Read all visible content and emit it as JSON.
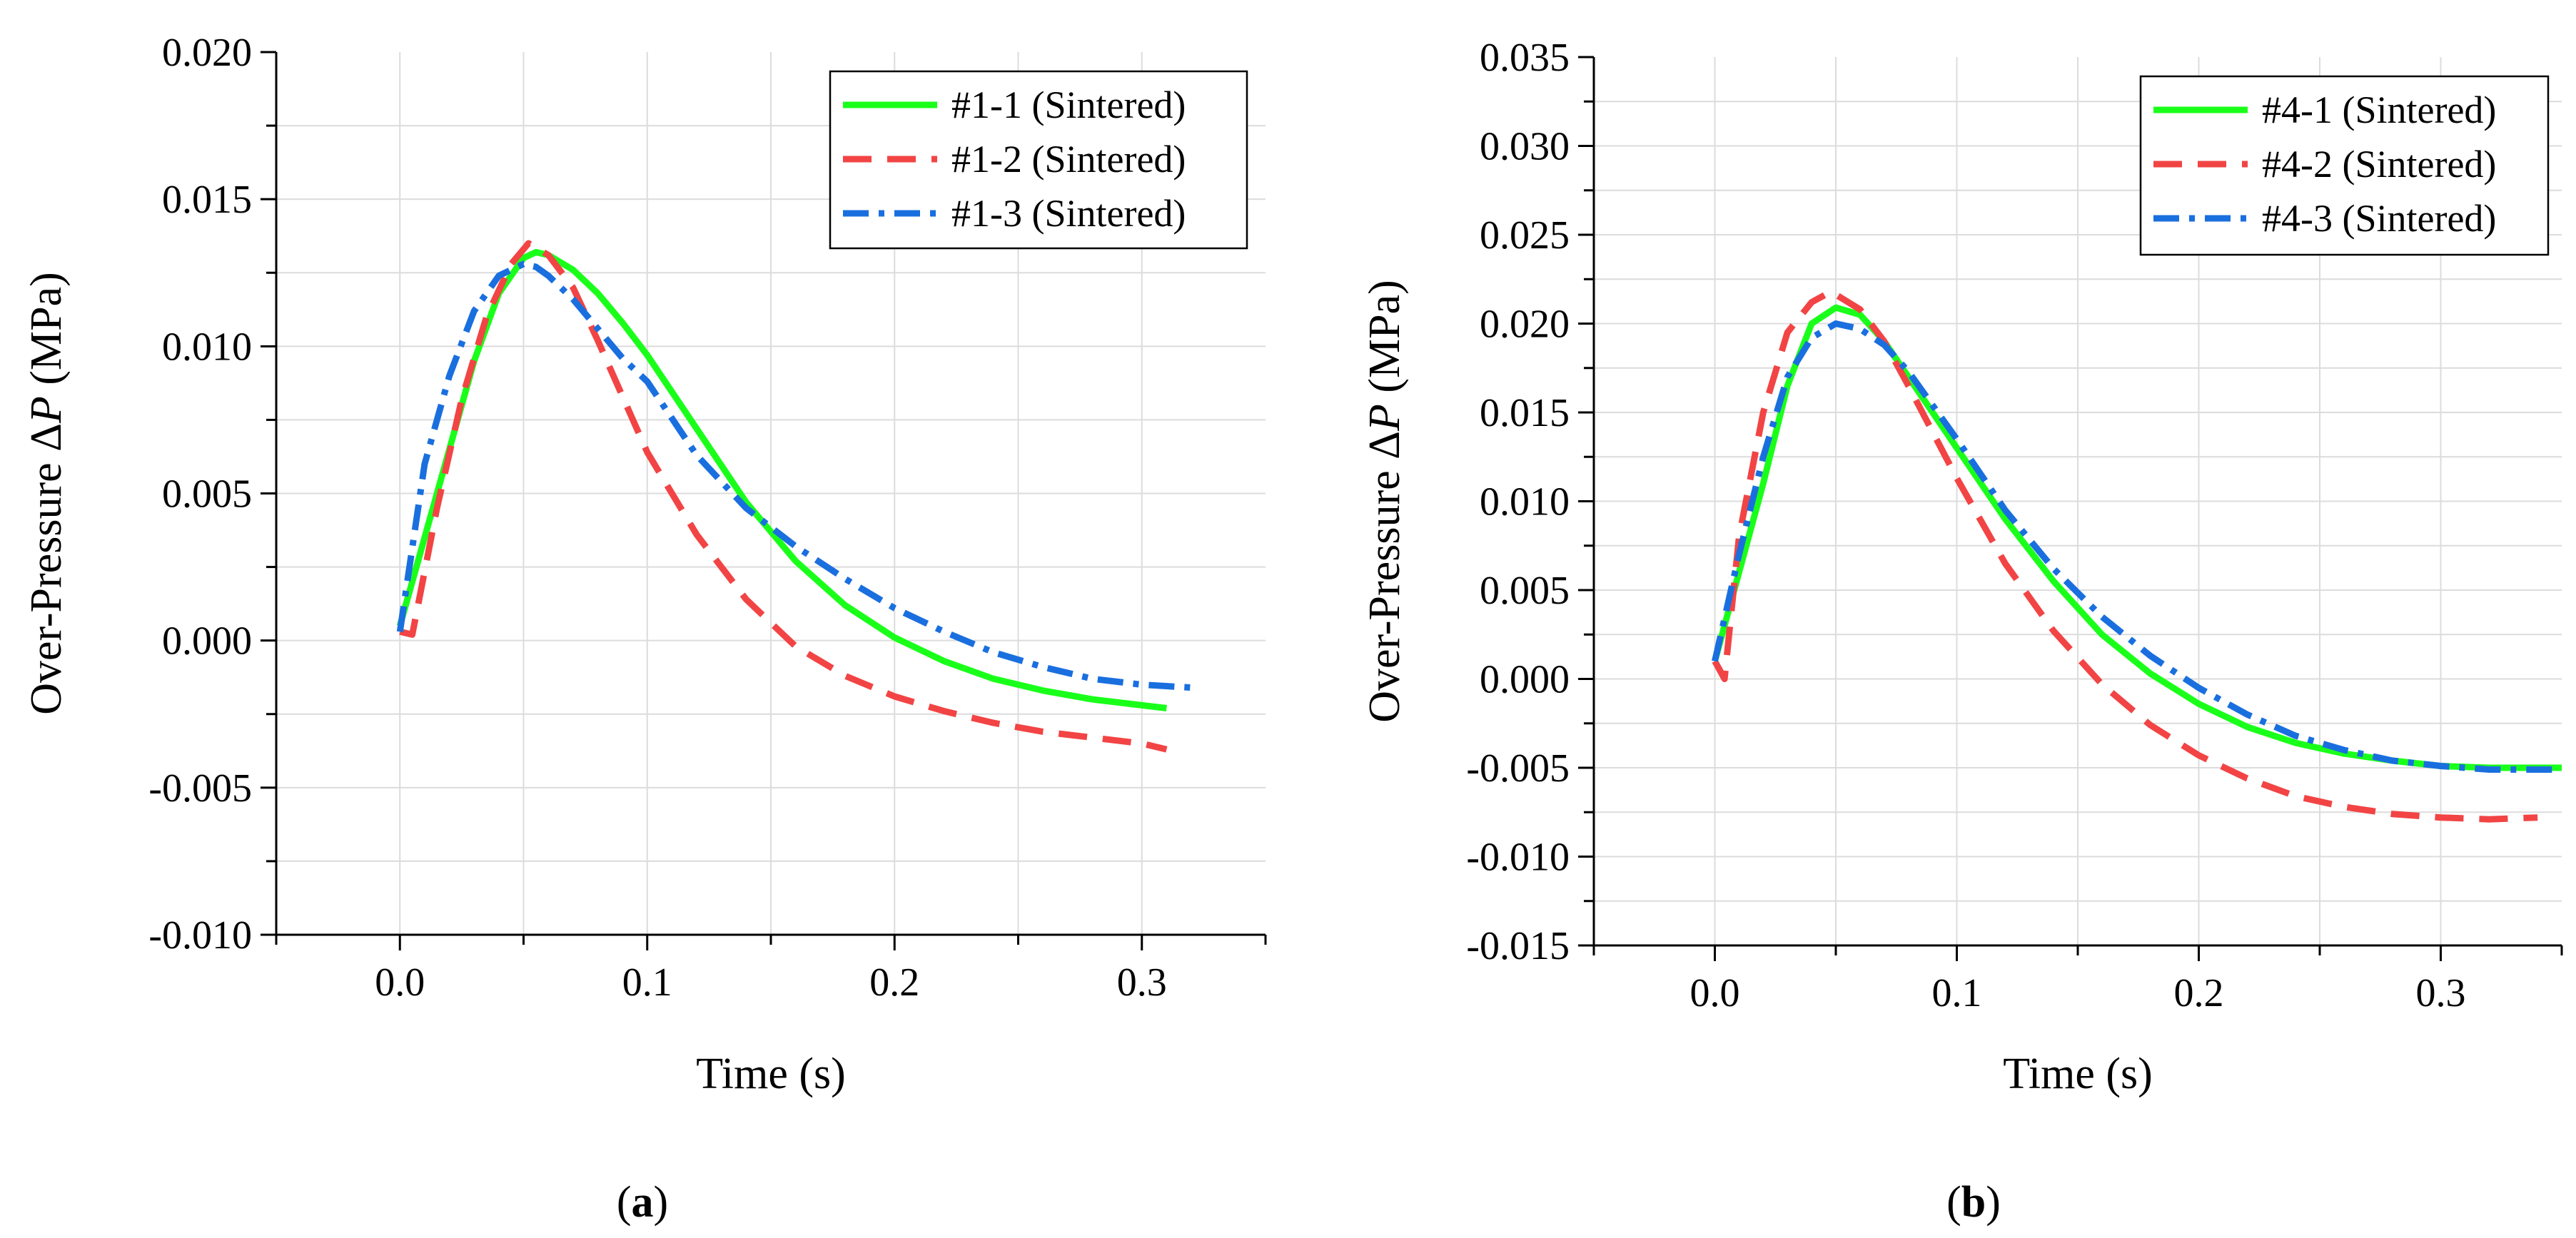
{
  "chart_data": [
    {
      "type": "line",
      "panel_label": "a",
      "xlabel": "Time (s)",
      "ylabel_prefix": "Over-Pressure Δ",
      "ylabel_var": "P",
      "ylabel_suffix": " (MPa)",
      "xlim": [
        -0.05,
        0.35
      ],
      "ylim": [
        -0.01,
        0.02
      ],
      "xticks": [
        0.0,
        0.1,
        0.2,
        0.3
      ],
      "xtick_labels": [
        "0.0",
        "0.1",
        "0.2",
        "0.3"
      ],
      "yticks": [
        -0.01,
        -0.005,
        0.0,
        0.005,
        0.01,
        0.015,
        0.02
      ],
      "ytick_labels": [
        "-0.010",
        "-0.005",
        "0.000",
        "0.005",
        "0.010",
        "0.015",
        "0.020"
      ],
      "legend_position": "top-right",
      "grid": true,
      "series": [
        {
          "name": "#1-1 (Sintered)",
          "color": "#1aff1a",
          "style": "solid",
          "x": [
            0.0,
            0.01,
            0.02,
            0.03,
            0.04,
            0.05,
            0.055,
            0.06,
            0.07,
            0.08,
            0.09,
            0.1,
            0.12,
            0.14,
            0.16,
            0.18,
            0.2,
            0.22,
            0.24,
            0.26,
            0.28,
            0.3,
            0.31
          ],
          "y": [
            0.0005,
            0.0035,
            0.0065,
            0.0095,
            0.0118,
            0.013,
            0.0132,
            0.0131,
            0.0126,
            0.0118,
            0.0108,
            0.0097,
            0.0072,
            0.0047,
            0.0027,
            0.0012,
            0.0001,
            -0.0007,
            -0.0013,
            -0.0017,
            -0.002,
            -0.0022,
            -0.0023
          ]
        },
        {
          "name": "#1-2 (Sintered)",
          "color": "#f24444",
          "style": "dash",
          "x": [
            0.0,
            0.005,
            0.015,
            0.025,
            0.035,
            0.045,
            0.052,
            0.06,
            0.07,
            0.08,
            0.09,
            0.1,
            0.12,
            0.14,
            0.16,
            0.18,
            0.2,
            0.22,
            0.24,
            0.26,
            0.28,
            0.3,
            0.31
          ],
          "y": [
            0.0003,
            0.0002,
            0.0045,
            0.0082,
            0.011,
            0.0128,
            0.0135,
            0.0131,
            0.012,
            0.0102,
            0.0083,
            0.0064,
            0.0036,
            0.0014,
            -0.0002,
            -0.0012,
            -0.0019,
            -0.0024,
            -0.0028,
            -0.0031,
            -0.0033,
            -0.0035,
            -0.0037
          ]
        },
        {
          "name": "#1-3 (Sintered)",
          "color": "#1a6fdf",
          "style": "dashdot",
          "x": [
            0.0,
            0.01,
            0.02,
            0.03,
            0.04,
            0.05,
            0.055,
            0.06,
            0.07,
            0.08,
            0.09,
            0.1,
            0.12,
            0.14,
            0.16,
            0.18,
            0.2,
            0.22,
            0.24,
            0.26,
            0.28,
            0.3,
            0.32
          ],
          "y": [
            0.0003,
            0.006,
            0.009,
            0.0112,
            0.0124,
            0.0128,
            0.0127,
            0.0124,
            0.0116,
            0.0106,
            0.0096,
            0.0088,
            0.0063,
            0.0045,
            0.0032,
            0.0021,
            0.0011,
            0.0003,
            -0.0004,
            -0.0009,
            -0.0013,
            -0.0015,
            -0.0016
          ]
        }
      ]
    },
    {
      "type": "line",
      "panel_label": "b",
      "xlabel": "Time (s)",
      "ylabel_prefix": "Over-Pressure Δ",
      "ylabel_var": "P",
      "ylabel_suffix": " (MPa)",
      "xlim": [
        -0.05,
        0.35
      ],
      "ylim": [
        -0.015,
        0.035
      ],
      "xticks": [
        0.0,
        0.1,
        0.2,
        0.3
      ],
      "xtick_labels": [
        "0.0",
        "0.1",
        "0.2",
        "0.3"
      ],
      "yticks": [
        -0.015,
        -0.01,
        -0.005,
        0.0,
        0.005,
        0.01,
        0.015,
        0.02,
        0.025,
        0.03,
        0.035
      ],
      "ytick_labels": [
        "-0.015",
        "-0.010",
        "-0.005",
        "0.000",
        "0.005",
        "0.010",
        "0.015",
        "0.020",
        "0.025",
        "0.030",
        "0.035"
      ],
      "legend_position": "top-right",
      "grid": true,
      "series": [
        {
          "name": "#4-1 (Sintered)",
          "color": "#1aff1a",
          "style": "solid",
          "x": [
            0.0,
            0.01,
            0.02,
            0.03,
            0.04,
            0.05,
            0.06,
            0.07,
            0.08,
            0.1,
            0.12,
            0.14,
            0.16,
            0.18,
            0.2,
            0.22,
            0.24,
            0.26,
            0.28,
            0.3,
            0.32,
            0.35
          ],
          "y": [
            0.001,
            0.006,
            0.011,
            0.0165,
            0.02,
            0.0209,
            0.0205,
            0.019,
            0.017,
            0.013,
            0.009,
            0.0055,
            0.0025,
            0.0003,
            -0.0014,
            -0.0027,
            -0.0036,
            -0.0042,
            -0.0046,
            -0.0049,
            -0.005,
            -0.005
          ]
        },
        {
          "name": "#4-2 (Sintered)",
          "color": "#f24444",
          "style": "dash",
          "x": [
            0.0,
            0.004,
            0.01,
            0.02,
            0.03,
            0.04,
            0.048,
            0.06,
            0.07,
            0.08,
            0.1,
            0.12,
            0.14,
            0.16,
            0.18,
            0.2,
            0.22,
            0.24,
            0.26,
            0.28,
            0.3,
            0.32,
            0.34
          ],
          "y": [
            0.001,
            0.0,
            0.008,
            0.015,
            0.0195,
            0.0212,
            0.0218,
            0.0208,
            0.019,
            0.0165,
            0.0113,
            0.0065,
            0.0027,
            -0.0003,
            -0.0026,
            -0.0043,
            -0.0056,
            -0.0066,
            -0.0072,
            -0.0076,
            -0.0078,
            -0.0079,
            -0.0078
          ]
        },
        {
          "name": "#4-3 (Sintered)",
          "color": "#1a6fdf",
          "style": "dashdot",
          "x": [
            0.0,
            0.01,
            0.02,
            0.03,
            0.04,
            0.05,
            0.06,
            0.07,
            0.08,
            0.1,
            0.12,
            0.14,
            0.16,
            0.18,
            0.2,
            0.22,
            0.24,
            0.26,
            0.28,
            0.3,
            0.32,
            0.35
          ],
          "y": [
            0.001,
            0.007,
            0.0125,
            0.017,
            0.0192,
            0.02,
            0.0197,
            0.0188,
            0.0173,
            0.0135,
            0.0095,
            0.0062,
            0.0035,
            0.0013,
            -0.0005,
            -0.002,
            -0.0032,
            -0.004,
            -0.0046,
            -0.0049,
            -0.0051,
            -0.0051
          ]
        }
      ]
    }
  ]
}
